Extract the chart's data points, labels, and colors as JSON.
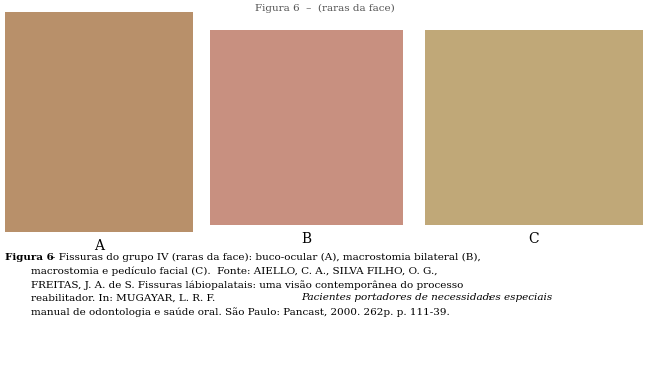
{
  "background_color": "#ffffff",
  "label_A": "A",
  "label_B": "B",
  "label_C": "C",
  "photo_bg_A": "#b8906a",
  "photo_bg_B": "#c89080",
  "photo_bg_C": "#c0a878",
  "font_size_caption": 7.5,
  "font_size_labels": 10,
  "caption_line1_bold": "Figura 6",
  "caption_line1_normal": " – Fissuras do grupo IV (raras da face): buco-ocular (A), macrostomia bilateral (B),",
  "caption_line2": "        macrostomia e pedículo facial (C).  Fonte: AIELLO, C. A., SILVA FILHO, O. G.,",
  "caption_line3": "        FREITAS, J. A. de S. Fissuras lábiopalatais: uma visão contemporânea do processo",
  "caption_line4_normal": "        reabilitador. In: MUGAYAR, L. R. F.  ",
  "caption_line4_italic": "Pacientes portadores de necessidades especiais",
  "caption_line4_end": ":",
  "caption_line5": "        manual de odontologia e saúde oral. São Paulo: Pancast, 2000. 262p. p. 111-39.",
  "top_text": "Figura 6  (raras da face)",
  "figwidth": 6.51,
  "figheight": 3.67,
  "dpi": 100
}
